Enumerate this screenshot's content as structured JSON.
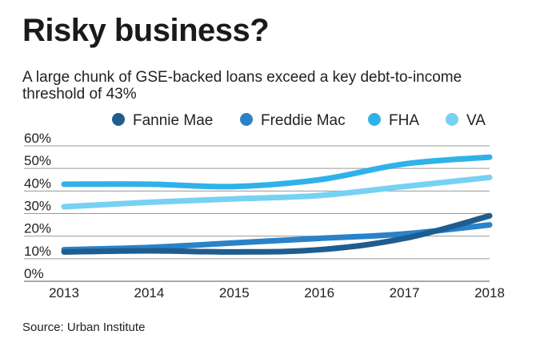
{
  "header": {
    "title": "Risky business?",
    "subtitle": "A large chunk of GSE-backed loans exceed a key debt-to-income threshold of 43%"
  },
  "footer": {
    "source": "Source: Urban Institute"
  },
  "chart_data": {
    "type": "line",
    "title": "Risky business?",
    "subtitle": "A large chunk of GSE-backed loans exceed a key debt-to-income threshold of 43%",
    "xlabel": "",
    "ylabel": "",
    "x": [
      2013,
      2014,
      2015,
      2016,
      2017,
      2018
    ],
    "ylim": [
      0,
      60
    ],
    "yticks": [
      "0%",
      "10%",
      "20%",
      "30%",
      "40%",
      "50%",
      "60%"
    ],
    "xticks": [
      "2013",
      "2014",
      "2015",
      "2016",
      "2017",
      "2018"
    ],
    "grid": true,
    "legend_position": "top-right",
    "series": [
      {
        "name": "Fannie Mae",
        "color": "#1f5d8f",
        "values": [
          13,
          13.5,
          13,
          14,
          19,
          29
        ]
      },
      {
        "name": "Freddie Mac",
        "color": "#2a82c8",
        "values": [
          14,
          15,
          17,
          19,
          21,
          25
        ]
      },
      {
        "name": "FHA",
        "color": "#2fb2ea",
        "values": [
          43,
          43,
          42,
          45,
          52,
          55
        ]
      },
      {
        "name": "VA",
        "color": "#77d1f3",
        "values": [
          33,
          35,
          36.5,
          38,
          42,
          46
        ]
      }
    ]
  }
}
